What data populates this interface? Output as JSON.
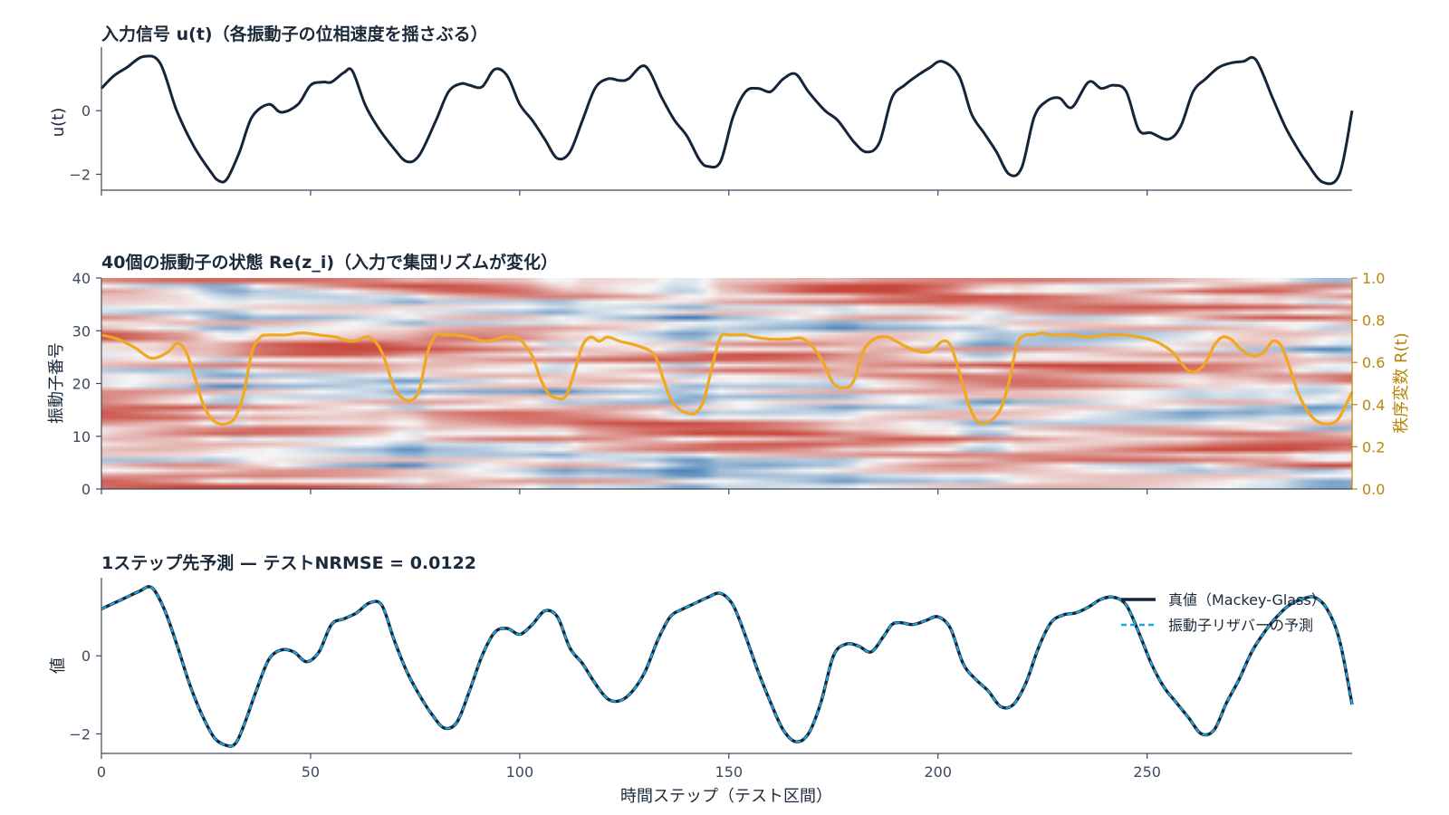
{
  "chart_data": [
    {
      "type": "line",
      "title": "入力信号 u(t)（各振動子の位相速度を揺さぶる）",
      "ylabel": "u(t)",
      "ylim": [
        -2.5,
        2.0
      ],
      "yticks": [
        0,
        -2
      ],
      "ytick_labels": [
        "0",
        "−2"
      ],
      "xlim": [
        0,
        299
      ],
      "color": "#14253a",
      "x": [
        0,
        3,
        6,
        10,
        14,
        18,
        22,
        26,
        28,
        30,
        33,
        36,
        40,
        43,
        47,
        50,
        53,
        55,
        58,
        60,
        63,
        66,
        70,
        73,
        76,
        80,
        83,
        86,
        88,
        91,
        94,
        97,
        100,
        103,
        106,
        109,
        112,
        115,
        118,
        121,
        124,
        126,
        130,
        134,
        137,
        140,
        143,
        145,
        148,
        151,
        154,
        157,
        160,
        163,
        166,
        169,
        173,
        176,
        180,
        183,
        186,
        189,
        192,
        195,
        198,
        201,
        205,
        208,
        211,
        214,
        217,
        220,
        223,
        226,
        229,
        232,
        236,
        239,
        242,
        245,
        248,
        251,
        255,
        258,
        261,
        264,
        267,
        270,
        273,
        276,
        280,
        283,
        286,
        288,
        292,
        296,
        299
      ],
      "y": [
        0.7,
        1.1,
        1.35,
        1.7,
        1.5,
        0.0,
        -1.1,
        -1.9,
        -2.2,
        -2.15,
        -1.3,
        -0.2,
        0.2,
        -0.05,
        0.2,
        0.8,
        0.9,
        0.9,
        1.2,
        1.25,
        0.2,
        -0.5,
        -1.2,
        -1.6,
        -1.4,
        -0.3,
        0.6,
        0.85,
        0.8,
        0.75,
        1.3,
        1.1,
        0.2,
        -0.3,
        -0.9,
        -1.5,
        -1.3,
        -0.3,
        0.7,
        1.0,
        0.95,
        1.0,
        1.4,
        0.4,
        -0.3,
        -0.8,
        -1.55,
        -1.75,
        -1.6,
        -0.2,
        0.6,
        0.7,
        0.6,
        1.0,
        1.15,
        0.6,
        0.0,
        -0.3,
        -1.0,
        -1.3,
        -1.0,
        0.4,
        0.8,
        1.1,
        1.35,
        1.55,
        1.1,
        -0.1,
        -0.7,
        -1.3,
        -2.0,
        -1.8,
        -0.2,
        0.3,
        0.4,
        0.1,
        0.9,
        0.7,
        0.8,
        0.6,
        -0.6,
        -0.7,
        -0.9,
        -0.5,
        0.6,
        1.0,
        1.35,
        1.5,
        1.55,
        1.6,
        0.4,
        -0.5,
        -1.2,
        -1.6,
        -2.25,
        -2.0,
        0.0
      ]
    },
    {
      "type": "heatmap",
      "title": "40個の振動子の状態 Re(z_i)（入力で集団リズムが変化）",
      "ylabel": "振動子番号",
      "ylim": [
        0,
        40
      ],
      "yticks": [
        0,
        10,
        20,
        30,
        40
      ],
      "ytick_labels": [
        "0",
        "10",
        "20",
        "30",
        "40"
      ],
      "xlim": [
        0,
        299
      ],
      "colormap": [
        "#3573b0",
        "#f6f6f6",
        "#c8453a"
      ],
      "overlay": {
        "type": "line",
        "ylabel_right": "秩序変数 R(t)",
        "ylim_right": [
          0.0,
          1.0
        ],
        "yticks_right": [
          0.0,
          0.2,
          0.4,
          0.6,
          0.8,
          1.0
        ],
        "ytick_labels_right": [
          "0.0",
          "0.2",
          "0.4",
          "0.6",
          "0.8",
          "1.0"
        ],
        "color": "#f0a821",
        "x": [
          0,
          4,
          8,
          12,
          16,
          18,
          20,
          22,
          24,
          26,
          28,
          30,
          32,
          34,
          36,
          38,
          40,
          44,
          48,
          52,
          56,
          60,
          64,
          67,
          70,
          72,
          74,
          76,
          78,
          80,
          82,
          84,
          88,
          92,
          96,
          98,
          100,
          103,
          105,
          107,
          109,
          111,
          113,
          115,
          117,
          119,
          121,
          124,
          128,
          132,
          134,
          136,
          138,
          140,
          142,
          144,
          146,
          148,
          150,
          152,
          154,
          156,
          160,
          164,
          168,
          172,
          175,
          178,
          180,
          182,
          184,
          186,
          188,
          190,
          194,
          198,
          201,
          203,
          205,
          207,
          209,
          211,
          213,
          215,
          217,
          219,
          221,
          223,
          225,
          227,
          229,
          232,
          236,
          240,
          244,
          248,
          252,
          256,
          258,
          260,
          262,
          264,
          266,
          268,
          270,
          272,
          274,
          276,
          278,
          280,
          282,
          284,
          286,
          288,
          290,
          292,
          294,
          296,
          299
        ],
        "y": [
          0.73,
          0.71,
          0.67,
          0.62,
          0.65,
          0.69,
          0.66,
          0.55,
          0.42,
          0.34,
          0.31,
          0.31,
          0.34,
          0.45,
          0.65,
          0.72,
          0.73,
          0.73,
          0.74,
          0.73,
          0.72,
          0.7,
          0.72,
          0.65,
          0.48,
          0.43,
          0.42,
          0.47,
          0.65,
          0.73,
          0.73,
          0.73,
          0.72,
          0.7,
          0.72,
          0.72,
          0.71,
          0.63,
          0.52,
          0.45,
          0.43,
          0.44,
          0.55,
          0.68,
          0.72,
          0.7,
          0.72,
          0.7,
          0.68,
          0.64,
          0.54,
          0.43,
          0.38,
          0.36,
          0.36,
          0.42,
          0.58,
          0.72,
          0.73,
          0.73,
          0.73,
          0.72,
          0.71,
          0.71,
          0.71,
          0.62,
          0.5,
          0.48,
          0.52,
          0.65,
          0.7,
          0.72,
          0.72,
          0.7,
          0.66,
          0.65,
          0.7,
          0.68,
          0.56,
          0.42,
          0.33,
          0.31,
          0.33,
          0.38,
          0.51,
          0.69,
          0.73,
          0.73,
          0.74,
          0.73,
          0.73,
          0.73,
          0.72,
          0.73,
          0.73,
          0.72,
          0.7,
          0.65,
          0.6,
          0.56,
          0.56,
          0.6,
          0.68,
          0.72,
          0.71,
          0.67,
          0.64,
          0.63,
          0.65,
          0.7,
          0.68,
          0.58,
          0.46,
          0.38,
          0.33,
          0.31,
          0.31,
          0.34,
          0.46
        ]
      }
    },
    {
      "type": "line",
      "title": "1ステップ先予測 — テストNRMSE = 0.0122",
      "ylabel": "値",
      "xlabel": "時間ステップ（テスト区間）",
      "ylim": [
        -2.5,
        2.0
      ],
      "yticks": [
        0,
        -2
      ],
      "ytick_labels": [
        "0",
        "−2"
      ],
      "xlim": [
        0,
        299
      ],
      "xticks": [
        0,
        50,
        100,
        150,
        200,
        250
      ],
      "xtick_labels": [
        "0",
        "50",
        "100",
        "150",
        "200",
        "250"
      ],
      "legend_position": "top-right",
      "series": [
        {
          "name": "真値（Mackey-Glass）",
          "color": "#14253a",
          "style": "solid",
          "x": [
            0,
            3,
            6,
            9,
            12,
            15,
            18,
            21,
            24,
            27,
            30,
            32,
            34,
            37,
            40,
            43,
            46,
            49,
            52,
            55,
            58,
            61,
            64,
            67,
            70,
            73,
            76,
            79,
            82,
            85,
            88,
            91,
            94,
            97,
            100,
            103,
            106,
            109,
            112,
            115,
            118,
            121,
            124,
            127,
            130,
            133,
            136,
            139,
            142,
            145,
            148,
            151,
            154,
            157,
            160,
            163,
            166,
            169,
            172,
            175,
            178,
            181,
            184,
            187,
            189,
            191,
            194,
            197,
            200,
            203,
            206,
            209,
            212,
            215,
            218,
            221,
            224,
            227,
            230,
            233,
            236,
            239,
            242,
            245,
            248,
            251,
            254,
            257,
            260,
            263,
            266,
            269,
            272,
            275,
            278,
            281,
            284,
            287,
            290,
            293,
            296,
            299
          ],
          "y": [
            1.2,
            1.35,
            1.5,
            1.65,
            1.75,
            1.2,
            0.3,
            -0.7,
            -1.5,
            -2.1,
            -2.3,
            -2.25,
            -1.8,
            -0.9,
            -0.1,
            0.15,
            0.1,
            -0.15,
            0.1,
            0.8,
            0.95,
            1.1,
            1.35,
            1.3,
            0.4,
            -0.4,
            -1.0,
            -1.5,
            -1.85,
            -1.7,
            -0.9,
            0.0,
            0.6,
            0.7,
            0.55,
            0.8,
            1.15,
            1.0,
            0.2,
            -0.2,
            -0.7,
            -1.1,
            -1.15,
            -0.9,
            -0.4,
            0.4,
            1.0,
            1.2,
            1.35,
            1.5,
            1.6,
            1.3,
            0.5,
            -0.4,
            -1.2,
            -1.9,
            -2.2,
            -2.0,
            -1.2,
            0.0,
            0.3,
            0.25,
            0.1,
            0.5,
            0.8,
            0.85,
            0.8,
            0.9,
            1.0,
            0.7,
            -0.2,
            -0.6,
            -0.9,
            -1.3,
            -1.25,
            -0.7,
            0.2,
            0.85,
            1.05,
            1.1,
            1.25,
            1.45,
            1.5,
            1.3,
            0.6,
            -0.2,
            -0.8,
            -1.2,
            -1.6,
            -2.0,
            -1.9,
            -1.2,
            -0.6,
            0.1,
            0.6,
            1.0,
            1.3,
            1.45,
            1.5,
            1.2,
            0.4,
            -1.25
          ]
        },
        {
          "name": "振動子リザバーの予測",
          "color": "#1fa5e0",
          "style": "dashed",
          "same_as": "真値（Mackey-Glass）"
        }
      ]
    }
  ]
}
